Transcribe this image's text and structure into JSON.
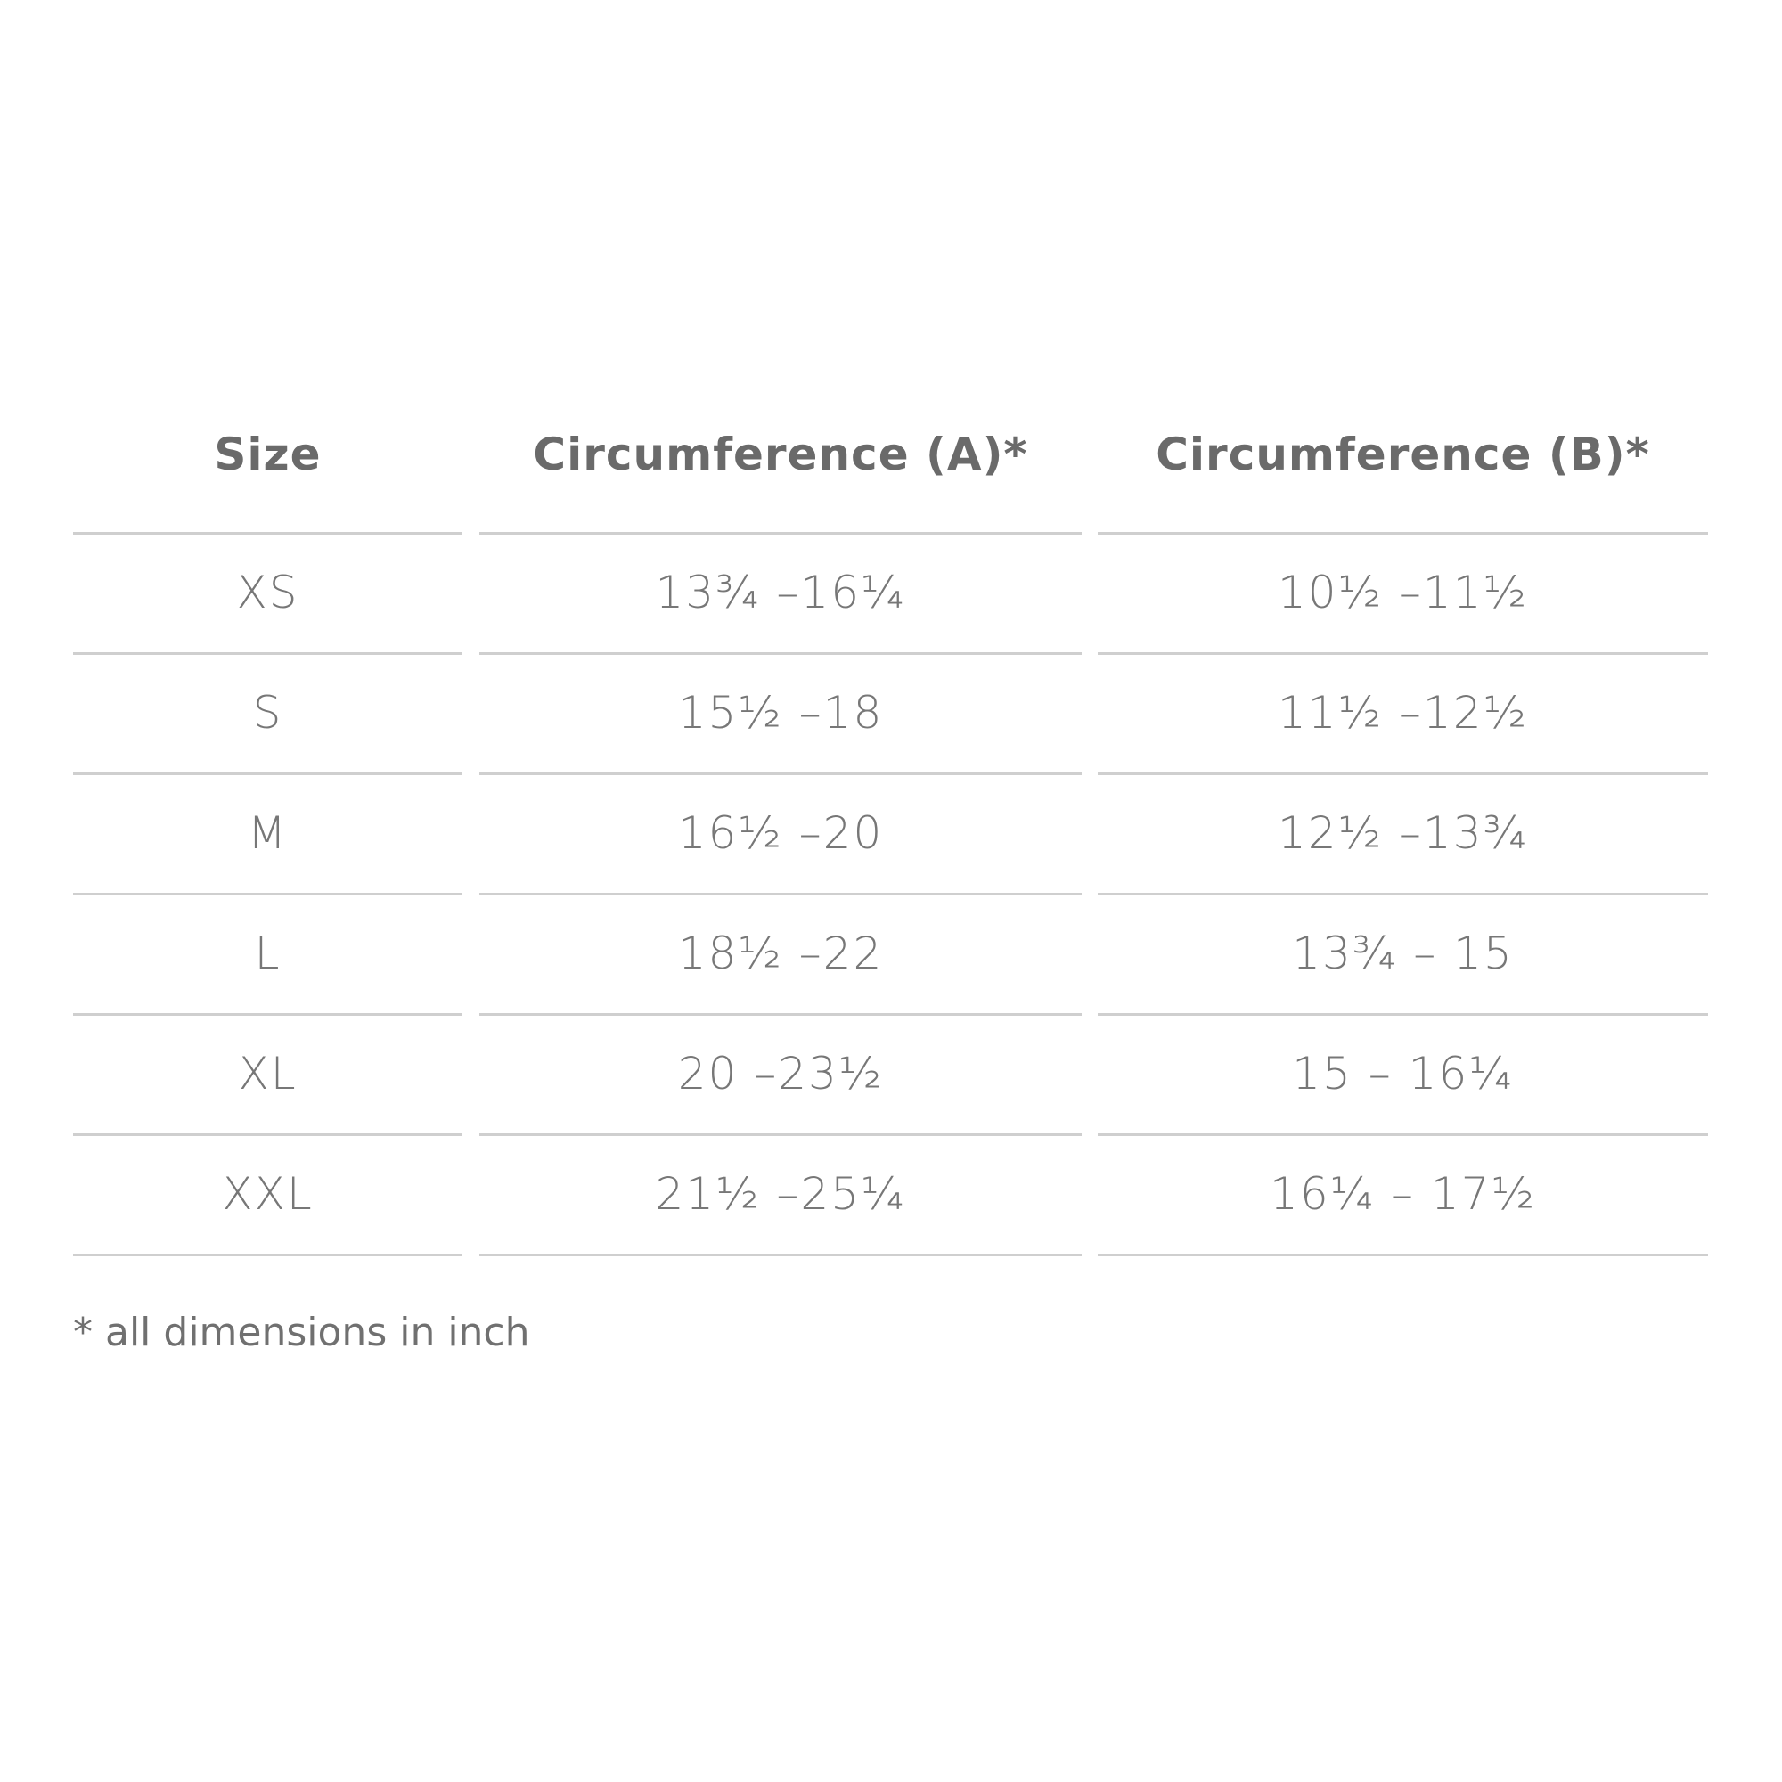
{
  "table": {
    "headers": [
      "Size",
      "Circumference (A)*",
      "Circumference (B)*"
    ],
    "rows": [
      [
        "XS",
        "13¾ –16¼",
        "10½ –11½"
      ],
      [
        "S",
        "15½ –18",
        "11½ –12½"
      ],
      [
        "M",
        "16½ –20",
        "12½ –13¾"
      ],
      [
        "L",
        "18½ –22",
        "13¾ – 15"
      ],
      [
        "XL",
        "20 –23½",
        "15 – 16¼"
      ],
      [
        "XXL",
        "21½ –25¼",
        "16¼ – 17½"
      ]
    ]
  },
  "footnote": "* all dimensions in inch",
  "colors": {
    "header_text": "#6a6a6a",
    "body_text": "#777777",
    "rule": "#cfcfcf"
  }
}
